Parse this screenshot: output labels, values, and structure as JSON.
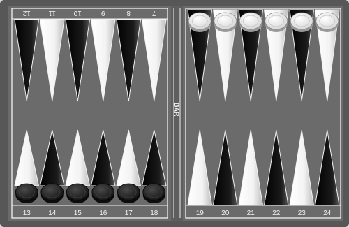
{
  "board": {
    "bar_label": "BAR",
    "top_left_numbers": [
      "12",
      "11",
      "10",
      "9",
      "8",
      "7"
    ],
    "top_right_numbers": [
      "",
      "",
      "",
      "",
      "",
      ""
    ],
    "bottom_left_numbers": [
      "13",
      "14",
      "15",
      "16",
      "17",
      "18"
    ],
    "bottom_right_numbers": [
      "19",
      "20",
      "21",
      "22",
      "23",
      "24"
    ],
    "points": {
      "1": {
        "checkers": 0
      },
      "2": {
        "checkers": 0
      },
      "3": {
        "checkers": 0
      },
      "4": {
        "checkers": 0
      },
      "5": {
        "checkers": 0
      },
      "6": {
        "checkers": 0
      },
      "7": {
        "checkers": 0
      },
      "8": {
        "checkers": 0
      },
      "9": {
        "checkers": 0
      },
      "10": {
        "checkers": 0
      },
      "11": {
        "checkers": 0
      },
      "12": {
        "checkers": 0
      },
      "13": {
        "checkers": 1,
        "color": "black"
      },
      "14": {
        "checkers": 1,
        "color": "black"
      },
      "15": {
        "checkers": 1,
        "color": "black"
      },
      "16": {
        "checkers": 1,
        "color": "black"
      },
      "17": {
        "checkers": 1,
        "color": "black"
      },
      "18": {
        "checkers": 1,
        "color": "black"
      },
      "19": {
        "checkers": 0
      },
      "20": {
        "checkers": 0
      },
      "21": {
        "checkers": 0
      },
      "22": {
        "checkers": 0
      },
      "23": {
        "checkers": 0
      },
      "24": {
        "checkers": 0
      }
    },
    "top_right_checkers": {
      "count": 6,
      "color": "white"
    },
    "colors": {
      "frame": "#5a5a5a",
      "field": "#6e6e6e",
      "white_point": "#f4f4f4",
      "black_point": "#111111",
      "black_checker": "#1c1c1c",
      "white_checker": "#eeeeee",
      "border_line": "#f5f5f5"
    }
  }
}
